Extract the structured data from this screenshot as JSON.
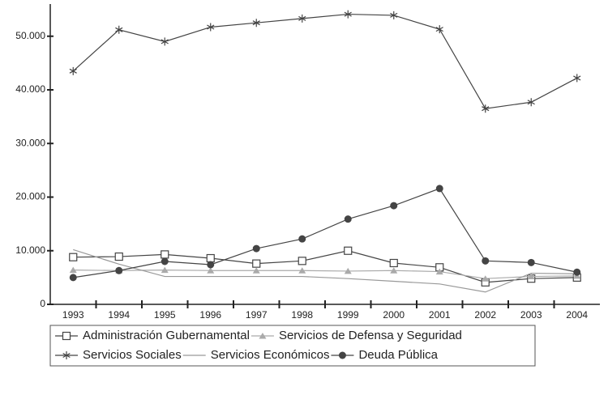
{
  "chart_data": {
    "type": "line",
    "categories": [
      "1993",
      "1994",
      "1995",
      "1996",
      "1997",
      "1998",
      "1999",
      "2000",
      "2001",
      "2002",
      "2003",
      "2004"
    ],
    "series": [
      {
        "name": "Administración Gubernamental",
        "color": "#444444",
        "marker": "square",
        "values": [
          8800,
          8900,
          9300,
          8600,
          7600,
          8100,
          10000,
          7700,
          6900,
          4100,
          4800,
          5000
        ]
      },
      {
        "name": "Servicios de Defensa y Seguridad",
        "color": "#aaaaaa",
        "marker": "triangle",
        "values": [
          6400,
          6300,
          6400,
          6300,
          6300,
          6300,
          6200,
          6300,
          6100,
          4800,
          5200,
          5300
        ]
      },
      {
        "name": "Servicios Sociales",
        "color": "#444444",
        "marker": "star",
        "values": [
          43500,
          51200,
          49000,
          51700,
          52500,
          53300,
          54100,
          53900,
          51300,
          36500,
          37700,
          42200
        ]
      },
      {
        "name": "Servicios Económicos",
        "color": "#999999",
        "marker": "none",
        "values": [
          10200,
          7500,
          5200,
          5200,
          5200,
          5200,
          4800,
          4300,
          3800,
          2300,
          5800,
          5700
        ]
      },
      {
        "name": "Deuda Pública",
        "color": "#444444",
        "marker": "circle",
        "values": [
          5000,
          6300,
          8000,
          7400,
          10400,
          12200,
          15900,
          18400,
          21600,
          8100,
          7800,
          6000
        ]
      }
    ],
    "ylim": [
      0,
      56000
    ],
    "yticks": [
      0,
      {
        "value": 10000,
        "label": "10.000"
      },
      {
        "value": 20000,
        "label": "20.000"
      },
      {
        "value": 30000,
        "label": "30.000"
      },
      {
        "value": 40000,
        "label": "40.000"
      },
      {
        "value": 50000,
        "label": "50.000"
      }
    ]
  }
}
